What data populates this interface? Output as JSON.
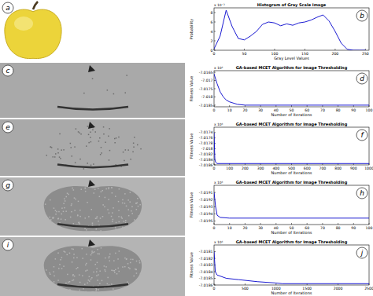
{
  "chart_data": [
    {
      "type": "line",
      "label": "b",
      "title": "Histogram of Gray Scale Image",
      "x_label": "Gray Level Values",
      "y_label": "Probability",
      "annotation": "x 10⁻³",
      "x": [
        0,
        10,
        20,
        30,
        40,
        50,
        60,
        70,
        80,
        90,
        100,
        110,
        120,
        130,
        140,
        150,
        160,
        170,
        180,
        190,
        200,
        210,
        220,
        230,
        240,
        250
      ],
      "values": [
        0.3,
        3,
        8.5,
        5,
        2.5,
        2.2,
        3,
        4,
        5.5,
        6,
        5.8,
        5.2,
        5.6,
        5.3,
        5.8,
        6,
        6.4,
        7,
        7.5,
        6.2,
        4,
        1.5,
        0.2,
        0,
        0,
        0
      ],
      "xlim": [
        0,
        256
      ],
      "ylim": [
        0,
        9
      ],
      "xticks": [
        0,
        50,
        100,
        150,
        200,
        250
      ],
      "yticks": [
        0,
        2,
        4,
        6,
        8
      ],
      "color": "#0000cc"
    },
    {
      "type": "line",
      "label": "d",
      "title": "GA-based MCET Algorithm for Image Thresholding",
      "x_label": "Number of Iterations",
      "y_label": "Fitness Value",
      "annotation": "x 10⁴",
      "x": [
        0,
        2,
        4,
        6,
        8,
        10,
        15,
        20,
        100
      ],
      "values": [
        -7.0166,
        -7.0172,
        -7.0177,
        -7.018,
        -7.0182,
        -7.0183,
        -7.01845,
        -7.0185,
        -7.0185
      ],
      "xlim": [
        0,
        100
      ],
      "ylim": [
        -7.0186,
        -7.0164
      ],
      "xticks": [
        0,
        10,
        20,
        30,
        40,
        50,
        60,
        70,
        80,
        90,
        100
      ],
      "yticks": [
        -7.0185,
        -7.018,
        -7.0175,
        -7.017,
        -7.0165
      ],
      "color": "#0000cc"
    },
    {
      "type": "line",
      "label": "f",
      "title": "GA-based MCET Algorithm for Image Thresholding",
      "x_label": "Number of Iterations",
      "y_label": "Fitness Value",
      "annotation": "x 10⁴",
      "x": [
        0,
        5,
        10,
        20,
        1000
      ],
      "values": [
        -7.0174,
        -7.0184,
        -7.0185,
        -7.01855,
        -7.01855
      ],
      "xlim": [
        0,
        1000
      ],
      "ylim": [
        -7.0186,
        -7.0172
      ],
      "xticks": [
        0,
        100,
        200,
        300,
        400,
        500,
        600,
        700,
        800,
        900,
        1000
      ],
      "yticks": [
        -7.0186,
        -7.0184,
        -7.0182,
        -7.018,
        -7.0178,
        -7.0176,
        -7.0174
      ],
      "color": "#0000cc"
    },
    {
      "type": "line",
      "label": "h",
      "title": "GA-based MCET Algorithm for Image Thresholding",
      "x_label": "Number of Iterations",
      "y_label": "Fitness Value",
      "annotation": "x 10⁴",
      "x": [
        0,
        1,
        2,
        4,
        10,
        100
      ],
      "values": [
        -7.0191,
        -7.0193,
        -7.01942,
        -7.01945,
        -7.01946,
        -7.01946
      ],
      "xlim": [
        0,
        100
      ],
      "ylim": [
        -7.01955,
        -7.019
      ],
      "xticks": [
        0,
        10,
        20,
        30,
        40,
        50,
        60,
        70,
        80,
        90,
        100
      ],
      "yticks": [
        -7.0195,
        -7.0194,
        -7.0193,
        -7.0192,
        -7.0191
      ],
      "color": "#0000cc"
    },
    {
      "type": "line",
      "label": "j",
      "title": "GA-based MCET Algorithm for Image Thresholding",
      "x_label": "Number of Iterations",
      "y_label": "Fitness Value",
      "annotation": "x 10⁴",
      "x": [
        0,
        20,
        50,
        200,
        400,
        700,
        1000,
        1100,
        2500
      ],
      "values": [
        -7.0181,
        -7.0184,
        -7.01845,
        -7.0185,
        -7.01852,
        -7.01855,
        -7.01857,
        -7.01858,
        -7.01858
      ],
      "xlim": [
        0,
        2500
      ],
      "ylim": [
        -7.0186,
        -7.018
      ],
      "xticks": [
        0,
        500,
        1000,
        1500,
        2000,
        2500
      ],
      "yticks": [
        -7.0186,
        -7.0185,
        -7.0184,
        -7.0183,
        -7.0182,
        -7.0181
      ],
      "color": "#0000cc"
    }
  ],
  "images": [
    {
      "label": "a"
    },
    {
      "label": "c"
    },
    {
      "label": "e"
    },
    {
      "label": "g"
    },
    {
      "label": "i"
    }
  ]
}
